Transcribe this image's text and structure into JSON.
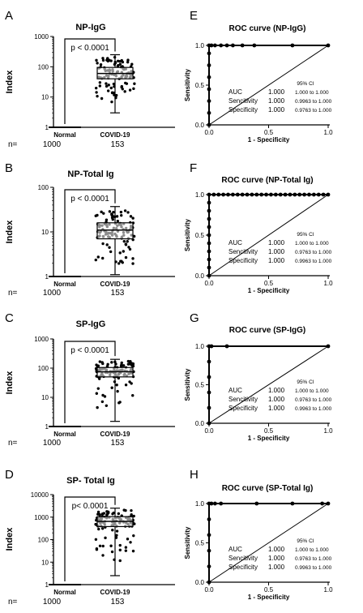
{
  "figure": {
    "chart_data": [
      {
        "type": "box",
        "panel_letter": "A",
        "title": "NP-IgG",
        "ylabel": "Index",
        "yscale": "log",
        "ylim": [
          1,
          1000
        ],
        "yticks": [
          "1",
          "10",
          "100",
          "1000"
        ],
        "categories": [
          "Normal",
          "COVID-19"
        ],
        "n_prefix": "n=",
        "n": [
          "1000",
          "153"
        ],
        "pvalue": "p < 0.0001",
        "boxes": [
          {
            "name": "Normal",
            "min": 1,
            "q1": 1,
            "median": 1,
            "q3": 1,
            "max": 1
          },
          {
            "name": "COVID-19",
            "min": 3,
            "q1": 40,
            "median": 60,
            "q3": 95,
            "max": 250
          }
        ]
      },
      {
        "type": "line",
        "panel_letter": "E",
        "title": "ROC curve (NP-IgG)",
        "xlabel": "1 - Specificity",
        "ylabel": "Sensitivity",
        "xlim": [
          0,
          1
        ],
        "ylim": [
          0,
          1
        ],
        "xticks": [
          "0.0",
          "0.5",
          "1.0"
        ],
        "yticks": [
          "0.0",
          "0.5",
          "1.0"
        ],
        "roc_points": [
          [
            0,
            0
          ],
          [
            0,
            0.15
          ],
          [
            0,
            0.3
          ],
          [
            0,
            0.45
          ],
          [
            0,
            0.6
          ],
          [
            0,
            0.75
          ],
          [
            0,
            0.9
          ],
          [
            0,
            1
          ],
          [
            0.02,
            1
          ],
          [
            0.05,
            1
          ],
          [
            0.1,
            1
          ],
          [
            0.15,
            1
          ],
          [
            0.2,
            1
          ],
          [
            0.28,
            1
          ],
          [
            0.38,
            1
          ],
          [
            0.7,
            1
          ],
          [
            1,
            1
          ]
        ],
        "stats": {
          "ci_header": "95% CI",
          "rows": [
            {
              "label": "AUC",
              "value": "1.000",
              "ci": "1.000 to 1.000"
            },
            {
              "label": "Sencitivity",
              "value": "1.000",
              "ci": "0.9963 to 1.000"
            },
            {
              "label": "Specificity",
              "value": "1.000",
              "ci": "0.9763 to 1.000"
            }
          ]
        }
      },
      {
        "type": "box",
        "panel_letter": "B",
        "title": "NP-Total Ig",
        "ylabel": "Index",
        "yscale": "log",
        "ylim": [
          1,
          100
        ],
        "yticks": [
          "1",
          "10",
          "100"
        ],
        "categories": [
          "Normal",
          "COVID-19"
        ],
        "n_prefix": "n=",
        "n": [
          "1000",
          "153"
        ],
        "pvalue": "p < 0.0001",
        "boxes": [
          {
            "name": "Normal",
            "min": 1,
            "q1": 1,
            "median": 1,
            "q3": 1,
            "max": 1
          },
          {
            "name": "COVID-19",
            "min": 1.1,
            "q1": 7,
            "median": 11,
            "q3": 16,
            "max": 37
          }
        ]
      },
      {
        "type": "line",
        "panel_letter": "F",
        "title": "ROC curve (NP-Total Ig)",
        "xlabel": "1 - Specificity",
        "ylabel": "Sensitivity",
        "xlim": [
          0,
          1
        ],
        "ylim": [
          0,
          1
        ],
        "xticks": [
          "0.0",
          "0.5",
          "1.0"
        ],
        "yticks": [
          "0.0",
          "0.5",
          "1.0"
        ],
        "roc_points": [
          [
            0,
            0
          ],
          [
            0,
            0.1
          ],
          [
            0,
            0.2
          ],
          [
            0,
            0.3
          ],
          [
            0,
            0.4
          ],
          [
            0,
            0.5
          ],
          [
            0,
            0.6
          ],
          [
            0,
            0.7
          ],
          [
            0,
            0.8
          ],
          [
            0,
            0.9
          ],
          [
            0,
            1
          ],
          [
            0.04,
            1
          ],
          [
            0.08,
            1
          ],
          [
            0.12,
            1
          ],
          [
            0.16,
            1
          ],
          [
            0.2,
            1
          ],
          [
            0.24,
            1
          ],
          [
            0.28,
            1
          ],
          [
            0.32,
            1
          ],
          [
            0.36,
            1
          ],
          [
            0.4,
            1
          ],
          [
            0.44,
            1
          ],
          [
            0.48,
            1
          ],
          [
            0.52,
            1
          ],
          [
            0.56,
            1
          ],
          [
            0.6,
            1
          ],
          [
            0.64,
            1
          ],
          [
            0.68,
            1
          ],
          [
            0.72,
            1
          ],
          [
            0.76,
            1
          ],
          [
            0.8,
            1
          ],
          [
            0.84,
            1
          ],
          [
            0.88,
            1
          ],
          [
            0.92,
            1
          ],
          [
            0.96,
            1
          ],
          [
            1,
            1
          ]
        ],
        "stats": {
          "ci_header": "95% CI",
          "rows": [
            {
              "label": "AUC",
              "value": "1.000",
              "ci": "1.000 to 1.000"
            },
            {
              "label": "Sencitivity",
              "value": "1.000",
              "ci": "0.9763 to 1.000"
            },
            {
              "label": "Specificity",
              "value": "1.000",
              "ci": "0.9963 to 1.000"
            }
          ]
        }
      },
      {
        "type": "box",
        "panel_letter": "C",
        "title": "SP-IgG",
        "ylabel": "Index",
        "yscale": "log",
        "ylim": [
          1,
          1000
        ],
        "yticks": [
          "1",
          "10",
          "100",
          "1000"
        ],
        "categories": [
          "Normal",
          "COVID-19"
        ],
        "n_prefix": "n=",
        "n": [
          "1000",
          "153"
        ],
        "pvalue": "p < 0.0001",
        "boxes": [
          {
            "name": "Normal",
            "min": 1,
            "q1": 1,
            "median": 1,
            "q3": 1,
            "max": 1
          },
          {
            "name": "COVID-19",
            "min": 1.5,
            "q1": 50,
            "median": 75,
            "q3": 105,
            "max": 200
          }
        ]
      },
      {
        "type": "line",
        "panel_letter": "G",
        "title": "ROC curve (SP-IgG)",
        "xlabel": "1 - Specificity",
        "ylabel": "Sensitivity",
        "xlim": [
          0,
          1
        ],
        "ylim": [
          0,
          1
        ],
        "xticks": [
          "0.0",
          "0.5",
          "1.0"
        ],
        "yticks": [
          "0.0",
          "0.5",
          "1.0"
        ],
        "roc_points": [
          [
            0,
            0
          ],
          [
            0,
            0.2
          ],
          [
            0,
            0.4
          ],
          [
            0,
            0.6
          ],
          [
            0,
            0.8
          ],
          [
            0,
            1
          ],
          [
            0.02,
            1
          ],
          [
            0.15,
            1
          ],
          [
            1,
            1
          ]
        ],
        "stats": {
          "ci_header": "95% CI",
          "rows": [
            {
              "label": "AUC",
              "value": "1.000",
              "ci": "1.000 to 1.000"
            },
            {
              "label": "Sencitivity",
              "value": "1.000",
              "ci": "0.9763 to 1.000"
            },
            {
              "label": "Specificity",
              "value": "1.000",
              "ci": "0.9963 to 1.000"
            }
          ]
        }
      },
      {
        "type": "box",
        "panel_letter": "D",
        "title": "SP- Total Ig",
        "ylabel": "Index",
        "yscale": "log",
        "ylim": [
          1,
          10000
        ],
        "yticks": [
          "1",
          "10",
          "100",
          "1000",
          "10000"
        ],
        "categories": [
          "Normal",
          "COVID-19"
        ],
        "n_prefix": "n=",
        "n": [
          "1000",
          "153"
        ],
        "pvalue": "p< 0.0001",
        "boxes": [
          {
            "name": "Normal",
            "min": 1,
            "q1": 1,
            "median": 1,
            "q3": 1,
            "max": 1
          },
          {
            "name": "COVID-19",
            "min": 2.5,
            "q1": 380,
            "median": 650,
            "q3": 1050,
            "max": 2500
          }
        ]
      },
      {
        "type": "line",
        "panel_letter": "H",
        "title": "ROC curve (SP-Total Ig)",
        "xlabel": "1 - Specificity",
        "ylabel": "Sensitivity",
        "xlim": [
          0,
          1
        ],
        "ylim": [
          0,
          1
        ],
        "xticks": [
          "0.0",
          "0.5",
          "1.0"
        ],
        "yticks": [
          "0.0",
          "0.5",
          "1.0"
        ],
        "roc_points": [
          [
            0,
            0
          ],
          [
            0,
            0.2
          ],
          [
            0,
            0.4
          ],
          [
            0,
            0.6
          ],
          [
            0,
            0.8
          ],
          [
            0,
            1
          ],
          [
            0.02,
            1
          ],
          [
            0.05,
            1
          ],
          [
            0.1,
            1
          ],
          [
            0.4,
            1
          ],
          [
            0.7,
            1
          ],
          [
            0.95,
            1
          ],
          [
            1,
            1
          ]
        ],
        "stats": {
          "ci_header": "95% CI",
          "rows": [
            {
              "label": "AUC",
              "value": "1.000",
              "ci": "1.000 to 1.000"
            },
            {
              "label": "Sencitivity",
              "value": "1.000",
              "ci": "0.9763 to 1.000"
            },
            {
              "label": "Specificity",
              "value": "1.000",
              "ci": "0.9963 to 1.000"
            }
          ]
        }
      }
    ]
  }
}
